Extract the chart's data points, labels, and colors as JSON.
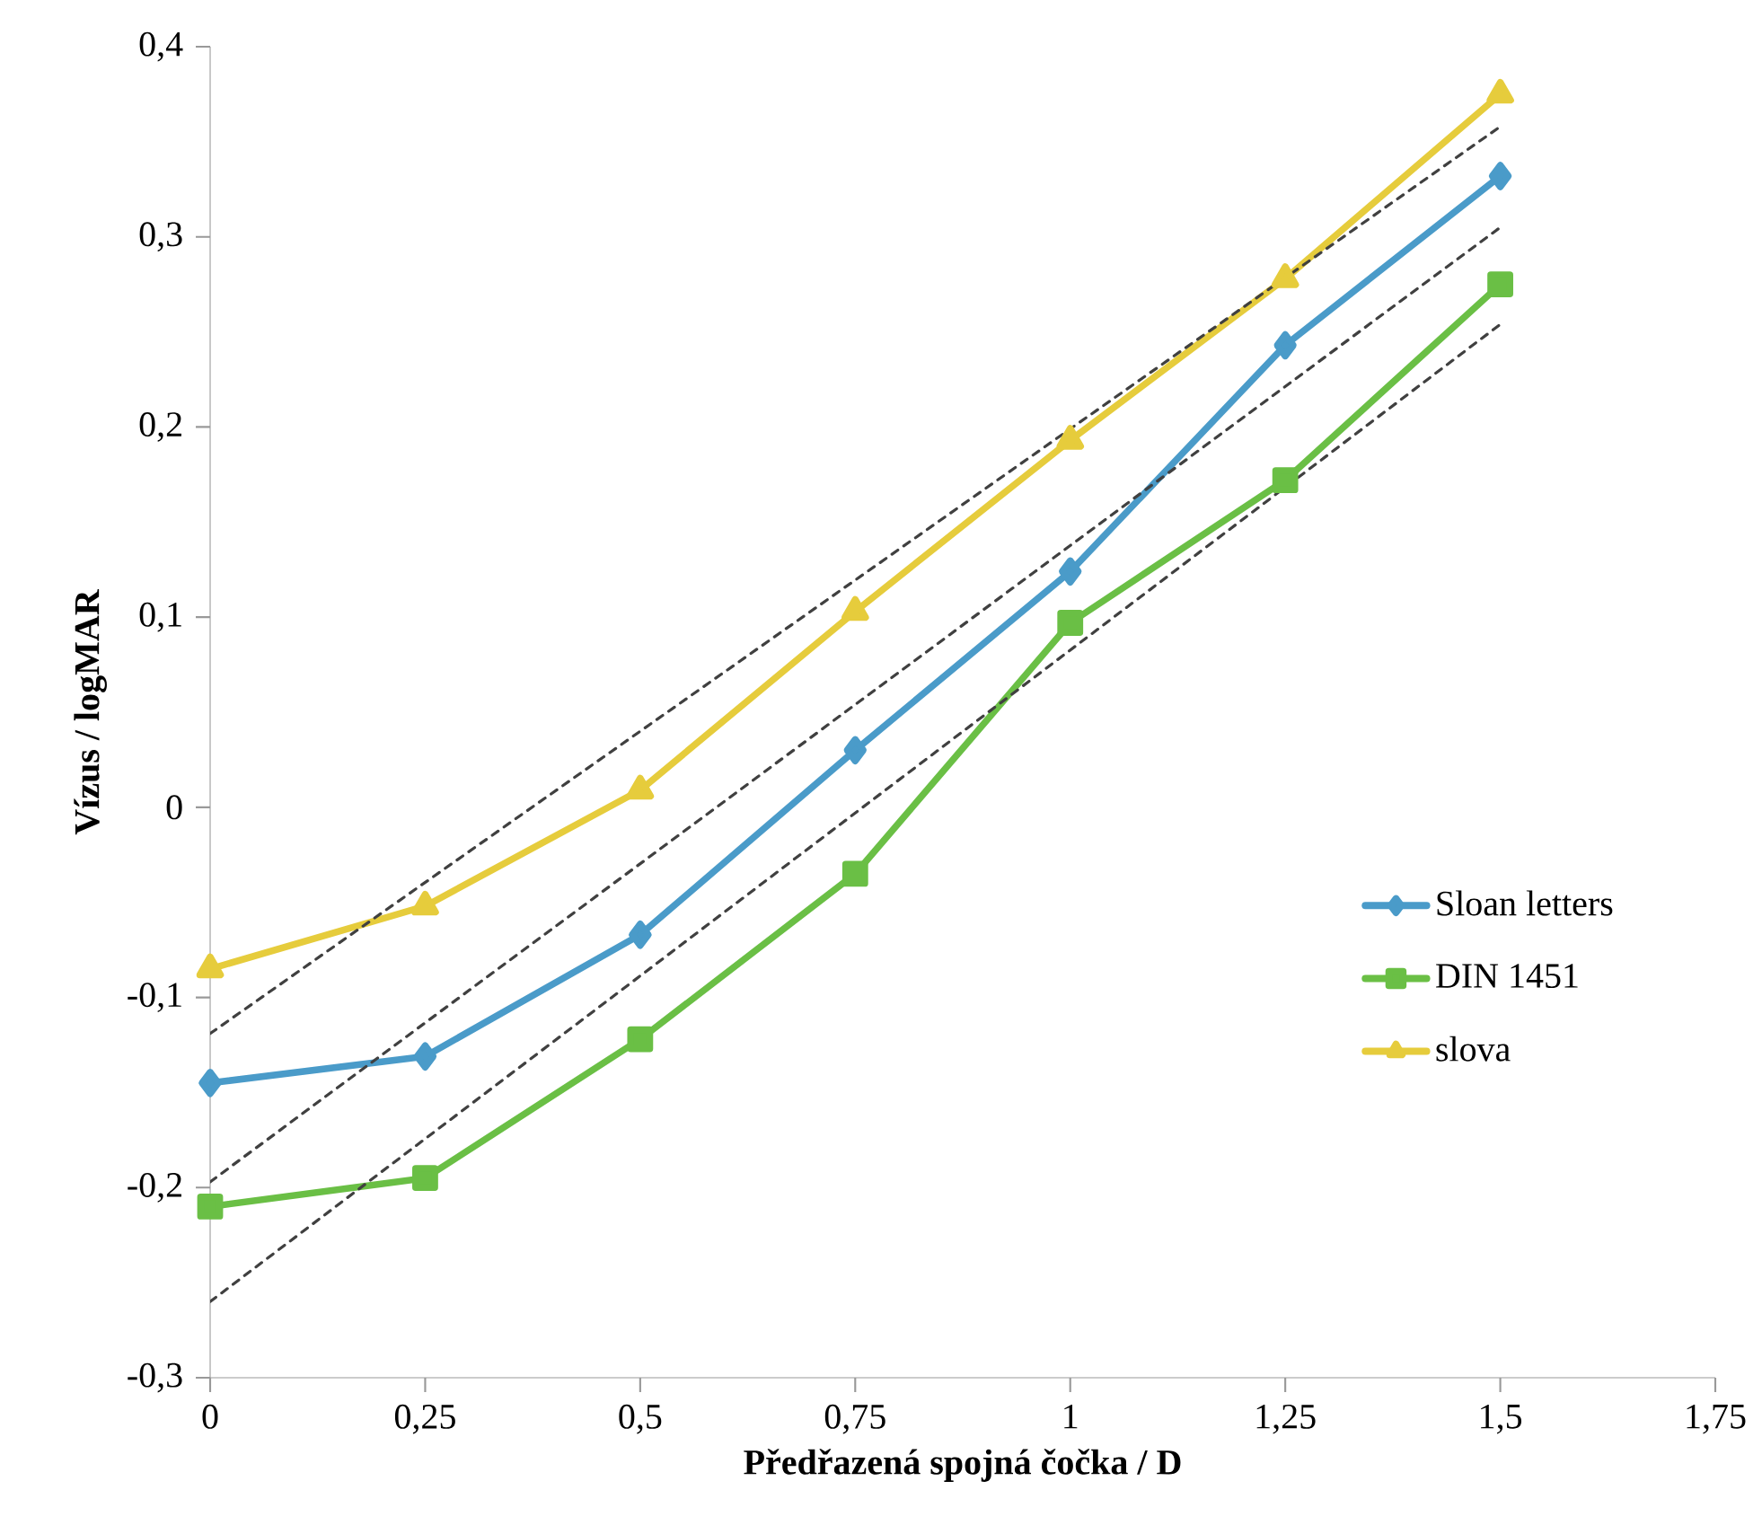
{
  "chart_data": {
    "type": "line",
    "xlabel": "Předřazená spojná čočka / D",
    "ylabel": "Vízus / logMAR",
    "x": [
      0,
      0.25,
      0.5,
      0.75,
      1,
      1.25,
      1.5
    ],
    "series": [
      {
        "name": "Sloan letters",
        "color": "#4a9bc9",
        "marker": "diamond",
        "values": [
          -0.145,
          -0.131,
          -0.067,
          0.03,
          0.124,
          0.243,
          0.332
        ]
      },
      {
        "name": "DIN 1451",
        "color": "#6abf45",
        "marker": "square",
        "values": [
          -0.21,
          -0.195,
          -0.122,
          -0.035,
          0.097,
          0.172,
          0.275
        ]
      },
      {
        "name": "slova",
        "color": "#e6cc3c",
        "marker": "triangle",
        "values": [
          -0.085,
          -0.052,
          0.009,
          0.103,
          0.193,
          0.278,
          0.375
        ]
      },
      {
        "type": "line",
        "color": "#404040",
        "line_style": "dashed",
        "marker": "none",
        "values": [
          -0.119,
          null,
          null,
          null,
          null,
          null,
          0.358
        ]
      },
      {
        "type": "line",
        "color": "#404040",
        "line_style": "dashed",
        "marker": "none",
        "values": [
          -0.197,
          null,
          null,
          null,
          null,
          null,
          0.305
        ]
      },
      {
        "type": "line",
        "color": "#404040",
        "line_style": "dashed",
        "marker": "none",
        "values": [
          -0.26,
          null,
          null,
          null,
          null,
          null,
          0.254
        ]
      }
    ],
    "xlim": [
      0,
      1.75
    ],
    "ylim": [
      -0.3,
      0.4
    ],
    "xticks": [
      {
        "value": 0,
        "label": "0"
      },
      {
        "value": 0.25,
        "label": "0,25"
      },
      {
        "value": 0.5,
        "label": "0,5"
      },
      {
        "value": 0.75,
        "label": "0,75"
      },
      {
        "value": 1,
        "label": "1"
      },
      {
        "value": 1.25,
        "label": "1,25"
      },
      {
        "value": 1.5,
        "label": "1,5"
      },
      {
        "value": 1.75,
        "label": "1,75"
      }
    ],
    "yticks": [
      {
        "value": -0.3,
        "label": "-0,3"
      },
      {
        "value": -0.2,
        "label": "-0,2"
      },
      {
        "value": -0.1,
        "label": "-0,1"
      },
      {
        "value": 0,
        "label": "0"
      },
      {
        "value": 0.1,
        "label": "0,1"
      },
      {
        "value": 0.2,
        "label": "0,2"
      },
      {
        "value": 0.3,
        "label": "0,3"
      },
      {
        "value": 0.4,
        "label": "0,4"
      }
    ],
    "grid": false,
    "legend": "right"
  }
}
